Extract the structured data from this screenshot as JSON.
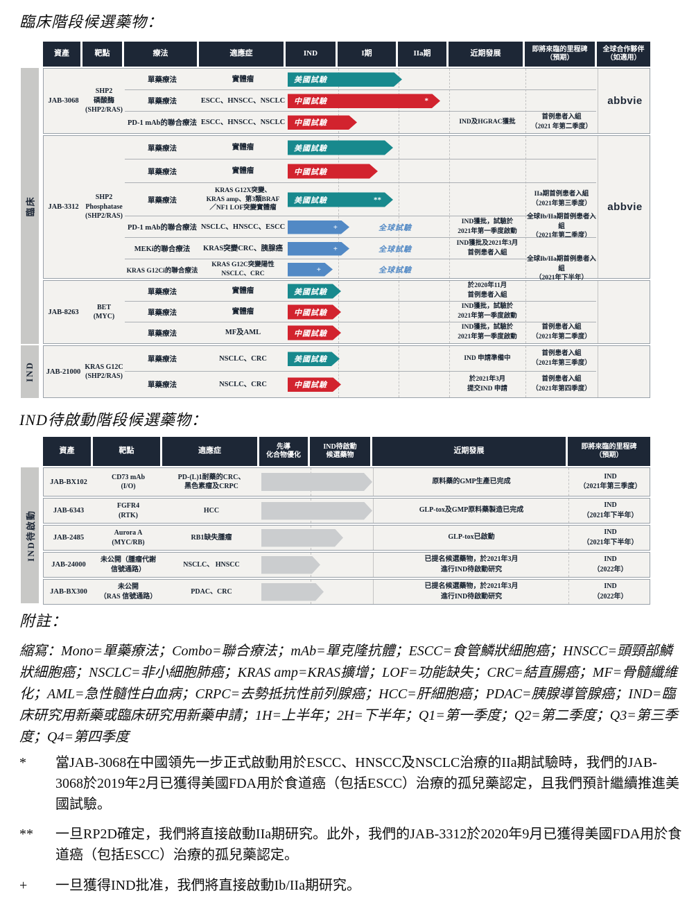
{
  "page": {
    "title_clinical": "臨床階段候選藥物：",
    "title_ind": "IND待啟動階段候選藥物：",
    "notes_title": "附註：",
    "abbreviations": "縮寫：Mono=單藥療法；Combo=聯合療法；mAb=單克隆抗體；ESCC=食管鱗狀細胞癌；HNSCC=頭頸部鱗狀細胞癌；NSCLC=非小細胞肺癌；KRAS amp=KRAS擴增；LOF=功能缺失；CRC=結直腸癌；MF=骨髓纖維化；AML=急性髓性白血病；CRPC=去勢抵抗性前列腺癌；HCC=肝細胞癌；PDAC=胰腺導管腺癌；IND=臨床研究用新藥或臨床研究用新藥申請；1H=上半年；2H=下半年；Q1=第一季度；Q2=第二季度；Q3=第三季度；Q4=第四季度",
    "footnotes": [
      {
        "marker": "*",
        "text": "當JAB-3068在中國領先一步正式啟動用於ESCC、HNSCC及NSCLC治療的IIa期試驗時，我們的JAB-3068於2019年2月已獲得美國FDA用於食道癌（包括ESCC）治療的孤兒藥認定，且我們預計繼續推進美國試驗。"
      },
      {
        "marker": "**",
        "text": "一旦RP2D確定，我們將直接啟動IIa期研究。此外，我們的JAB-3312於2020年9月已獲得美國FDA用於食道癌（包括ESCC）治療的孤兒藥認定。"
      },
      {
        "marker": "+",
        "text": "一旦獲得IND批准，我們將直接啟動Ib/IIa期研究。"
      }
    ]
  },
  "colors": {
    "header_bg": "#1d2736",
    "us_trial": "#18898d",
    "china_trial": "#d2232e",
    "global_trial": "#5289c5",
    "lead_arrow": "#cbcdcf",
    "row_bg": "#f3f2ef",
    "side_label_bg": "#c8c8c6"
  },
  "clinical_table": {
    "headers": [
      "資產",
      "靶點",
      "療法",
      "適應症",
      "IND",
      "I期",
      "IIa期",
      "近期發展",
      "即將來臨的里程碑\n（預期）",
      "全球合作夥伴\n（如適用）"
    ],
    "side_labels": {
      "clinical": "臨床",
      "ind": "IND"
    },
    "groups": [
      {
        "asset": "JAB-3068",
        "target": "SHP2\n磷酸酶\n(SHP2/RAS)",
        "partner": "abbvie",
        "rows": [
          {
            "therapy": "單藥療法",
            "indication": "實體瘤",
            "trial": "美國試驗",
            "type": "us",
            "len": 165,
            "marker": "",
            "global": "",
            "dev": "",
            "milestone": ""
          },
          {
            "therapy": "單藥療法",
            "indication": "ESCC、HNSCC、NSCLC",
            "trial": "中國試驗",
            "type": "cn",
            "len": 220,
            "marker": "*",
            "global": "",
            "dev": "",
            "milestone": ""
          },
          {
            "therapy": "PD-1 mAb的聯合療法",
            "indication": "ESCC、HNSCC、NSCLC",
            "trial": "中國試驗",
            "type": "cn",
            "len": 100,
            "marker": "",
            "global": "",
            "dev": "IND及HGRAC獲批",
            "milestone": "首例患者入組\n（2021 年第二季度）"
          }
        ]
      },
      {
        "asset": "JAB-3312",
        "target": "SHP2\nPhosphatase\n(SHP2/RAS)",
        "partner": "abbvie",
        "rows": [
          {
            "therapy": "單藥療法",
            "indication": "實體瘤",
            "trial": "美國試驗",
            "type": "us",
            "len": 152,
            "marker": "",
            "global": "",
            "dev": "",
            "milestone": ""
          },
          {
            "therapy": "單藥療法",
            "indication": "實體瘤",
            "trial": "中國試驗",
            "type": "cn",
            "len": 130,
            "marker": "",
            "global": "",
            "dev": "",
            "milestone": ""
          },
          {
            "therapy": "單藥療法",
            "indication": "KRAS G12X突變、\nKRAS amp、第3類BRAF\n／NF1 LOF突變實體瘤",
            "trial": "美國試驗",
            "type": "us",
            "len": 152,
            "marker": "**",
            "global": "",
            "dev": "",
            "milestone": "IIa期首例患者入組\n（2021年第三季度）"
          },
          {
            "therapy": "PD-1 mAb的聯合療法",
            "indication": "NSCLC、HNSCC、ESCC",
            "trial": "",
            "type": "global",
            "len": 89,
            "marker": "+",
            "global": "全球試驗",
            "dev": "IND獲批，試驗於\n2021年第一季度啟動",
            "milestone": "全球Ib/IIa期首例患者入組\n（2021年第二季度）"
          },
          {
            "therapy": "MEKi的聯合療法",
            "indication": "KRAS突變CRC、胰腺癌",
            "trial": "",
            "type": "global",
            "len": 89,
            "marker": "+",
            "global": "全球試驗",
            "dev": "IND獲批及2021年3月\n首例患者入組",
            "milestone": ""
          },
          {
            "therapy": "KRAS G12Ci的聯合療法",
            "indication": "KRAS G12C突變陽性\nNSCLC、CRC",
            "trial": "",
            "type": "global",
            "len": 65,
            "marker": "+",
            "global": "全球試驗",
            "dev": "",
            "milestone": "全球Ib/IIa期首例患者入組\n（2021年下半年）"
          }
        ]
      },
      {
        "asset": "JAB-8263",
        "target": "BET\n(MYC)",
        "partner": "",
        "rows": [
          {
            "therapy": "單藥療法",
            "indication": "實體瘤",
            "trial": "美國試驗",
            "type": "us",
            "len": 77,
            "marker": "",
            "global": "",
            "dev": "於2020年11月\n首例患者入組",
            "milestone": ""
          },
          {
            "therapy": "單藥療法",
            "indication": "實體瘤",
            "trial": "中國試驗",
            "type": "cn",
            "len": 77,
            "marker": "",
            "global": "",
            "dev": "IND獲批，試驗於\n2021年第一季度啟動",
            "milestone": ""
          },
          {
            "therapy": "單藥療法",
            "indication": "MF及AML",
            "trial": "中國試驗",
            "type": "cn",
            "len": 77,
            "marker": "",
            "global": "",
            "dev": "IND獲批，試驗於\n2021年第一季度啟動",
            "milestone": "首例患者入組\n（2021年第二季度）"
          }
        ]
      },
      {
        "asset": "JAB-21000",
        "target": "KRAS G12C\n(SHP2/RAS)",
        "partner": "",
        "rows": [
          {
            "therapy": "單藥療法",
            "indication": "NSCLC、CRC",
            "trial": "美國試驗",
            "type": "us",
            "len": 75,
            "marker": "",
            "global": "",
            "dev": "IND 申請準備中",
            "milestone": "首例患者入組\n（2021年第三季度）"
          },
          {
            "therapy": "單藥療法",
            "indication": "NSCLC、CRC",
            "trial": "中國試驗",
            "type": "cn",
            "len": 77,
            "marker": "",
            "global": "",
            "dev": "於2021年3月\n提交IND 申請",
            "milestone": "首例患者入組\n（2021年第四季度）"
          }
        ]
      }
    ]
  },
  "ind_table": {
    "headers": [
      "資產",
      "靶點",
      "適應症",
      "先導\n化合物優化",
      "IND待啟動\n候選藥物",
      "近期發展",
      "即將來臨的里程碑\n（預期）"
    ],
    "side_label": "IND待啟動",
    "rows": [
      {
        "asset": "JAB-BX102",
        "target": "CD73 mAb\n(I/O)",
        "indication": "PD-(L)1耐藥的CRC、\n黑色素瘤及CRPC",
        "type": "lead",
        "len": 160,
        "dev": "原料藥的GMP生產已完成",
        "milestone": "IND\n（2021年第三季度）"
      },
      {
        "asset": "JAB-6343",
        "target": "FGFR4\n(RTK)",
        "indication": "HCC",
        "type": "lead",
        "len": 160,
        "dev": "GLP-tox及GMP原料藥製造已完成",
        "milestone": "IND\n（2021年下半年）"
      },
      {
        "asset": "JAB-2485",
        "target": "Aurora A\n(MYC/RB)",
        "indication": "RB1缺失腫瘤",
        "type": "lead",
        "len": 118,
        "dev": "GLP-tox已啟動",
        "milestone": "IND\n（2021年下半年）"
      },
      {
        "asset": "JAB-24000",
        "target": "未公開（腫瘤代謝\n信號通路）",
        "indication": "NSCLC、 HNSCC",
        "type": "lead",
        "len": 85,
        "dev": "已提名候選藥物，於2021年3月\n進行IND待啟動研究",
        "milestone": "IND\n（2022年）"
      },
      {
        "asset": "JAB-BX300",
        "target": "未公開\n（RAS 信號通路）",
        "indication": "PDAC、CRC",
        "type": "lead",
        "len": 90,
        "dev": "已提名候選藥物，於2021年3月\n進行IND待啟動研究",
        "milestone": "IND\n（2022年）"
      }
    ]
  }
}
